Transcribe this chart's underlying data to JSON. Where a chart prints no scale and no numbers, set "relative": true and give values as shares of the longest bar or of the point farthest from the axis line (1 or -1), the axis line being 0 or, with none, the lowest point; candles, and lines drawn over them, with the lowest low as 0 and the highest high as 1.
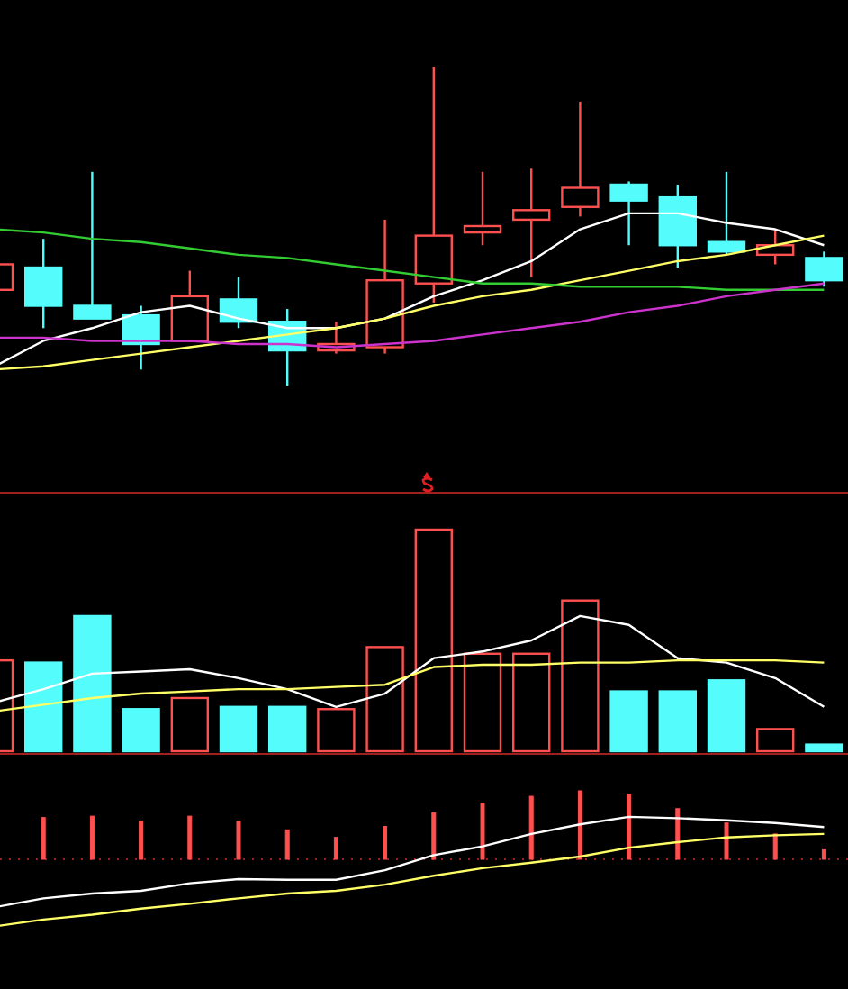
{
  "chart_data": [
    {
      "type": "candlestick",
      "relative": true,
      "categories": [
        null,
        null,
        null,
        null,
        null,
        null,
        null,
        null,
        null,
        null,
        null,
        null,
        null,
        null,
        null,
        null,
        null,
        null
      ],
      "ohlc": [
        [
          0.3,
          0.38,
          0.3,
          0.38
        ],
        [
          0.37,
          0.46,
          0.18,
          0.25
        ],
        [
          0.25,
          0.67,
          0.21,
          0.21
        ],
        [
          0.22,
          0.25,
          0.05,
          0.13
        ],
        [
          0.14,
          0.36,
          0.14,
          0.28
        ],
        [
          0.27,
          0.34,
          0.18,
          0.2
        ],
        [
          0.2,
          0.24,
          0,
          0.11
        ],
        [
          0.11,
          0.2,
          0.1,
          0.13
        ],
        [
          0.12,
          0.52,
          0.1,
          0.33
        ],
        [
          0.32,
          1,
          0.26,
          0.47
        ],
        [
          0.48,
          0.67,
          0.44,
          0.5
        ],
        [
          0.52,
          0.68,
          0.34,
          0.55
        ],
        [
          0.56,
          0.89,
          0.53,
          0.62
        ],
        [
          0.63,
          0.64,
          0.44,
          0.58
        ],
        [
          0.59,
          0.63,
          0.37,
          0.44
        ],
        [
          0.45,
          0.67,
          0.41,
          0.42
        ],
        [
          0.41,
          0.49,
          0.38,
          0.44
        ],
        [
          0.4,
          0.42,
          0.31,
          0.33
        ]
      ],
      "colors": [
        "#ff5050",
        "#54fcfc",
        "#54fcfc",
        "#54fcfc",
        "#ff5050",
        "#54fcfc",
        "#54fcfc",
        "#ff5050",
        "#ff5050",
        "#ff5050",
        "#ff5050",
        "#ff5050",
        "#ff5050",
        "#54fcfc",
        "#54fcfc",
        "#54fcfc",
        "#ff5050",
        "#54fcfc"
      ],
      "series": [
        {
          "type": "line",
          "color": "#ffffff",
          "values": [
            0.06,
            0.14,
            0.18,
            0.23,
            0.25,
            0.21,
            0.18,
            0.18,
            0.21,
            0.28,
            0.33,
            0.39,
            0.49,
            0.54,
            0.54,
            0.51,
            0.49,
            0.44
          ]
        },
        {
          "type": "line",
          "color": "#ffff66",
          "values": [
            0.05,
            0.06,
            0.08,
            0.1,
            0.12,
            0.14,
            0.16,
            0.18,
            0.21,
            0.25,
            0.28,
            0.3,
            0.33,
            0.36,
            0.39,
            0.41,
            0.44,
            0.47
          ]
        },
        {
          "type": "line",
          "color": "#33cc33",
          "values": [
            0.49,
            0.48,
            0.46,
            0.45,
            0.43,
            0.41,
            0.4,
            0.38,
            0.36,
            0.34,
            0.32,
            0.32,
            0.31,
            0.31,
            0.31,
            0.3,
            0.3,
            0.3
          ]
        },
        {
          "type": "line",
          "color": "#cc33cc",
          "values": [
            0.15,
            0.15,
            0.14,
            0.14,
            0.14,
            0.13,
            0.13,
            0.12,
            0.13,
            0.14,
            0.16,
            0.18,
            0.2,
            0.23,
            0.25,
            0.28,
            0.3,
            0.32
          ]
        }
      ]
    },
    {
      "type": "bar",
      "relative": true,
      "categories": [
        null,
        null,
        null,
        null,
        null,
        null,
        null,
        null,
        null,
        null,
        null,
        null,
        null,
        null,
        null,
        null,
        null,
        null
      ],
      "series": [
        {
          "type": "bar",
          "colors": [
            "#ff5050",
            "#54fcfc",
            "#54fcfc",
            "#54fcfc",
            "#ff5050",
            "#54fcfc",
            "#54fcfc",
            "#ff5050",
            "#ff5050",
            "#ff5050",
            "#ff5050",
            "#ff5050",
            "#ff5050",
            "#54fcfc",
            "#54fcfc",
            "#54fcfc",
            "#ff5050",
            "#54fcfc"
          ],
          "values": [
            0.41,
            0.4,
            0.61,
            0.19,
            0.24,
            0.2,
            0.2,
            0.19,
            0.47,
            1,
            0.44,
            0.44,
            0.68,
            0.27,
            0.27,
            0.32,
            0.1,
            0.03
          ]
        },
        {
          "type": "line",
          "color": "#ffffff",
          "values": [
            0.22,
            0.28,
            0.35,
            0.36,
            0.37,
            0.33,
            0.28,
            0.2,
            0.26,
            0.42,
            0.45,
            0.5,
            0.61,
            0.57,
            0.42,
            0.4,
            0.33,
            0.2
          ]
        },
        {
          "type": "line",
          "color": "#ffff66",
          "values": [
            0.18,
            0.21,
            0.24,
            0.26,
            0.27,
            0.28,
            0.28,
            0.29,
            0.3,
            0.38,
            0.39,
            0.39,
            0.4,
            0.4,
            0.41,
            0.41,
            0.41,
            0.4
          ]
        }
      ]
    },
    {
      "type": "bar",
      "relative": true,
      "ref_lines": [
        {
          "axis": "y",
          "value": 0,
          "color": "#a02020",
          "line_style": "dotted"
        }
      ],
      "categories": [
        null,
        null,
        null,
        null,
        null,
        null,
        null,
        null,
        null,
        null,
        null,
        null,
        null,
        null,
        null,
        null,
        null,
        null
      ],
      "series": [
        {
          "type": "bar",
          "color": "#ff5050",
          "values": [
            null,
            0.61,
            0.63,
            0.56,
            0.63,
            0.56,
            0.43,
            0.32,
            0.48,
            0.68,
            0.82,
            0.92,
            1,
            0.95,
            0.74,
            0.53,
            0.37,
            0.14
          ]
        },
        {
          "type": "line",
          "color": "#ffffff",
          "values": [
            -0.7,
            -0.57,
            -0.5,
            -0.46,
            -0.35,
            -0.29,
            -0.3,
            -0.3,
            -0.16,
            0.06,
            0.19,
            0.37,
            0.51,
            0.62,
            0.6,
            0.57,
            0.53,
            0.47
          ]
        },
        {
          "type": "line",
          "color": "#ffff66",
          "values": [
            -0.98,
            -0.88,
            -0.81,
            -0.72,
            -0.65,
            -0.57,
            -0.5,
            -0.46,
            -0.37,
            -0.24,
            -0.13,
            -0.05,
            0.04,
            0.17,
            0.25,
            0.32,
            0.35,
            0.37
          ]
        }
      ]
    }
  ]
}
